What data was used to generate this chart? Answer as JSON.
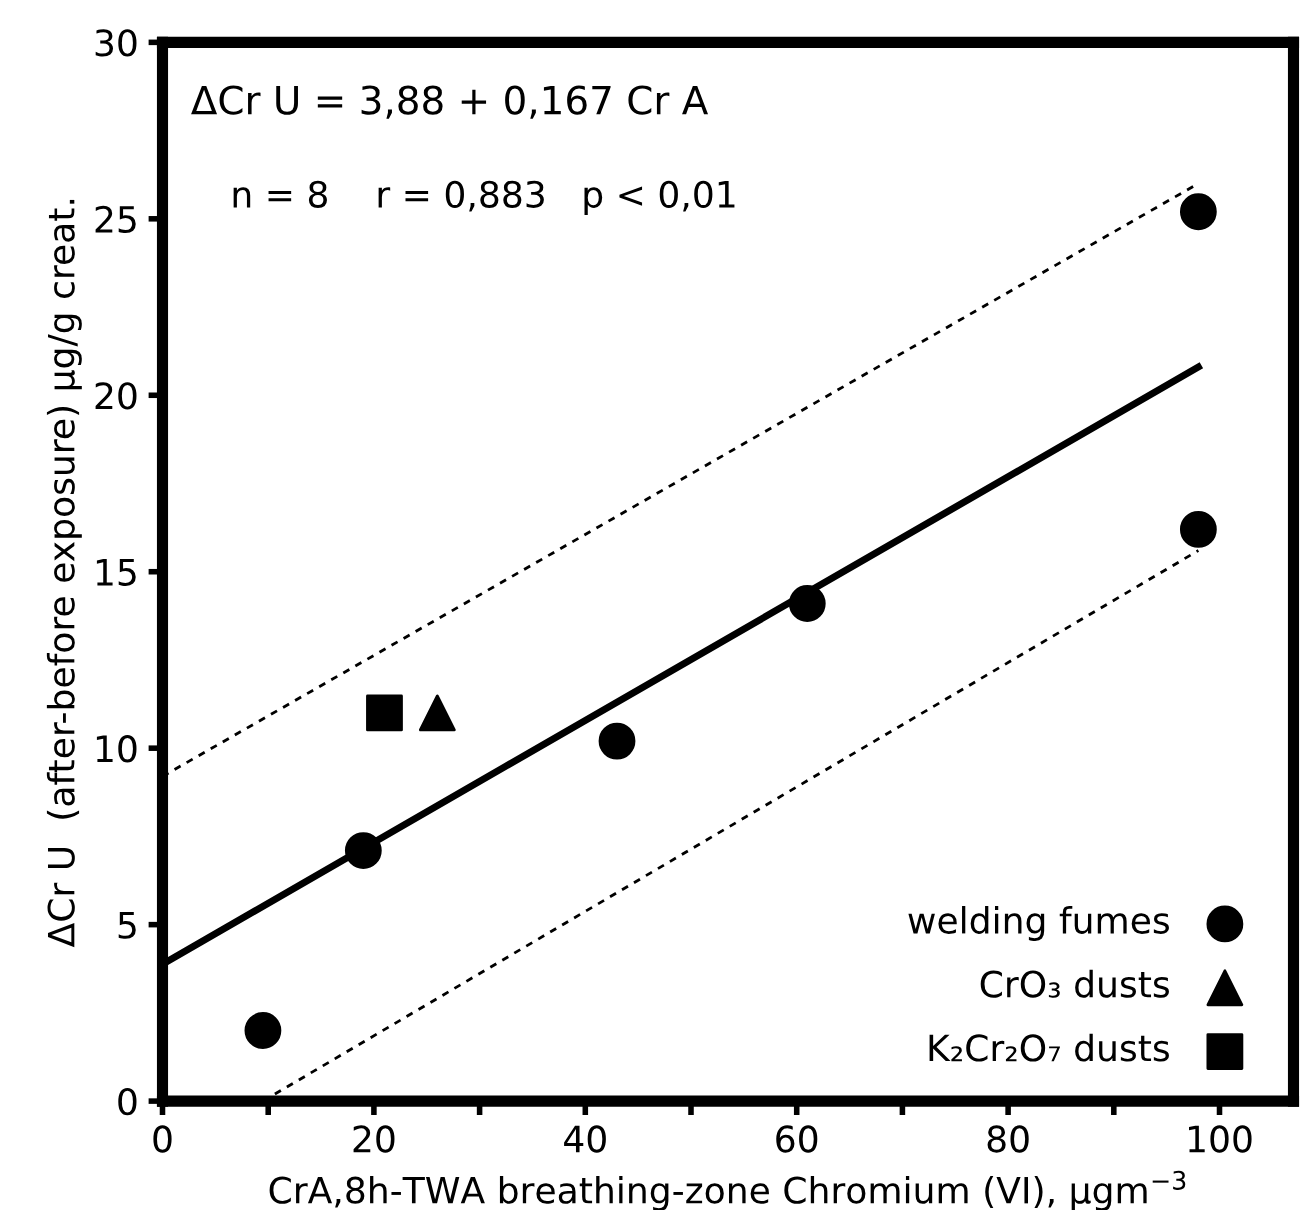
{
  "chart_data": {
    "type": "scatter",
    "xlabel": "CrA,8h-TWA breathing-zone Chromium (VI), µgm$^{−3}$",
    "ylabel": "ΔCr U  (after-before exposure) µg/g creat.",
    "annotations": [
      "ΔCr U = 3,88 + 0,167 Cr A",
      "n = 8    r = 0,883   p < 0,01"
    ],
    "xlim": [
      0,
      107
    ],
    "ylim": [
      0,
      30
    ],
    "xticks": [
      0,
      {
        "value": 10,
        "label": null
      },
      20,
      {
        "value": 30,
        "label": null
      },
      40,
      {
        "value": 50,
        "label": null
      },
      60,
      {
        "value": 70,
        "label": null
      },
      80,
      {
        "value": 90,
        "label": null
      },
      100
    ],
    "yticks": [
      0,
      5,
      10,
      15,
      20,
      25,
      30
    ],
    "grid": false,
    "legend": "bottom right",
    "series": [
      {
        "name": "welding fumes",
        "color": "#000000",
        "marker": "circle",
        "x": [
          9.5,
          19,
          43,
          61,
          98,
          98
        ],
        "values": [
          2.0,
          7.1,
          10.2,
          14.1,
          16.2,
          25.2
        ]
      },
      {
        "name": "CrO₃ dusts",
        "color": "#000000",
        "marker": "triangle",
        "x": [
          26
        ],
        "values": [
          11.0
        ]
      },
      {
        "name": "K₂Cr₂O₇ dusts",
        "color": "#000000",
        "marker": "square",
        "x": [
          21
        ],
        "values": [
          11.0
        ]
      },
      {
        "type": "line",
        "color": "#000000",
        "marker": "none",
        "line_style": "solid",
        "x": [
          0,
          98
        ],
        "values": [
          3.88,
          20.8
        ]
      },
      {
        "type": "line",
        "color": "#000000",
        "marker": "none",
        "line_style": "dashed",
        "x": [
          0,
          98
        ],
        "values": [
          9.2,
          26.0
        ]
      },
      {
        "type": "line",
        "color": "#000000",
        "marker": "none",
        "line_style": "dashed",
        "x": [
          9.5,
          98
        ],
        "values": [
          0,
          15.6
        ]
      }
    ]
  }
}
